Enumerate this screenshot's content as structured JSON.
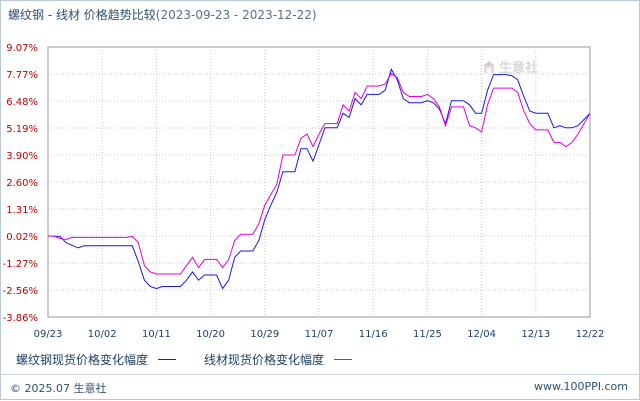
{
  "header": {
    "title": "螺纹钢 - 线材 价格趋势比较",
    "range": "(2023-09-23 - 2023-12-22)"
  },
  "watermark": {
    "text": "生意社"
  },
  "legend": {
    "series1": "螺纹钢现货价格变化幅度",
    "series2": "线材现货价格变化幅度"
  },
  "footer": {
    "copyright": "© 2025.07 生意社",
    "site": "www.100PPI.com"
  },
  "colors": {
    "series1": "#1a1adc",
    "series2": "#e000e0",
    "axis_label": "#c00000",
    "grid": "#c8c8c8"
  },
  "chart_data": {
    "type": "line",
    "ylim": [
      -3.86,
      9.07
    ],
    "ytick_labels": [
      "9.07%",
      "7.77%",
      "6.48%",
      "5.19%",
      "3.90%",
      "2.60%",
      "1.31%",
      "0.02%",
      "-1.27%",
      "-2.56%",
      "-3.86%"
    ],
    "xtick_labels": [
      "09/23",
      "10/02",
      "10/11",
      "10/20",
      "10/29",
      "11/07",
      "11/16",
      "11/25",
      "12/04",
      "12/13",
      "12/22"
    ],
    "x_range_days": [
      0,
      90
    ],
    "series": [
      {
        "name": "螺纹钢现货价格变化幅度",
        "color": "#1a1adc",
        "points": [
          [
            0,
            0.02
          ],
          [
            2,
            0.0
          ],
          [
            3,
            -0.3
          ],
          [
            5,
            -0.55
          ],
          [
            6,
            -0.45
          ],
          [
            13,
            -0.45
          ],
          [
            14,
            -0.45
          ],
          [
            15,
            -1.2
          ],
          [
            16,
            -2.1
          ],
          [
            17,
            -2.4
          ],
          [
            18,
            -2.5
          ],
          [
            19,
            -2.4
          ],
          [
            22,
            -2.4
          ],
          [
            23,
            -2.1
          ],
          [
            24,
            -1.7
          ],
          [
            25,
            -2.1
          ],
          [
            26,
            -1.85
          ],
          [
            27,
            -1.85
          ],
          [
            28,
            -1.85
          ],
          [
            29,
            -2.5
          ],
          [
            30,
            -2.1
          ],
          [
            31,
            -1.0
          ],
          [
            32,
            -0.7
          ],
          [
            34,
            -0.7
          ],
          [
            35,
            -0.2
          ],
          [
            36,
            0.8
          ],
          [
            37,
            1.5
          ],
          [
            38,
            2.1
          ],
          [
            39,
            3.1
          ],
          [
            40,
            3.1
          ],
          [
            41,
            3.1
          ],
          [
            42,
            4.2
          ],
          [
            43,
            4.2
          ],
          [
            44,
            3.6
          ],
          [
            45,
            4.4
          ],
          [
            46,
            5.2
          ],
          [
            47,
            5.2
          ],
          [
            48,
            5.2
          ],
          [
            49,
            5.9
          ],
          [
            50,
            5.7
          ],
          [
            51,
            6.6
          ],
          [
            52,
            6.3
          ],
          [
            53,
            6.8
          ],
          [
            55,
            6.8
          ],
          [
            56,
            7.0
          ],
          [
            57,
            8.0
          ],
          [
            58,
            7.5
          ],
          [
            59,
            6.6
          ],
          [
            60,
            6.4
          ],
          [
            61,
            6.4
          ],
          [
            62,
            6.4
          ],
          [
            63,
            6.5
          ],
          [
            64,
            6.4
          ],
          [
            65,
            6.1
          ],
          [
            66,
            5.4
          ],
          [
            67,
            6.5
          ],
          [
            68,
            6.5
          ],
          [
            69,
            6.5
          ],
          [
            70,
            6.3
          ],
          [
            71,
            5.9
          ],
          [
            72,
            5.9
          ],
          [
            73,
            7.0
          ],
          [
            74,
            7.75
          ],
          [
            76,
            7.75
          ],
          [
            77,
            7.7
          ],
          [
            78,
            7.5
          ],
          [
            79,
            6.7
          ],
          [
            80,
            6.0
          ],
          [
            81,
            5.9
          ],
          [
            82,
            5.9
          ],
          [
            83,
            5.9
          ],
          [
            84,
            5.2
          ],
          [
            85,
            5.3
          ],
          [
            86,
            5.2
          ],
          [
            87,
            5.2
          ],
          [
            88,
            5.3
          ],
          [
            89,
            5.6
          ],
          [
            90,
            5.9
          ]
        ]
      },
      {
        "name": "线材现货价格变化幅度",
        "color": "#e000e0",
        "points": [
          [
            0,
            0.02
          ],
          [
            1,
            0.02
          ],
          [
            2,
            -0.1
          ],
          [
            3,
            -0.15
          ],
          [
            4,
            -0.05
          ],
          [
            13,
            -0.05
          ],
          [
            14,
            0.0
          ],
          [
            15,
            -0.3
          ],
          [
            16,
            -1.4
          ],
          [
            17,
            -1.7
          ],
          [
            18,
            -1.8
          ],
          [
            19,
            -1.8
          ],
          [
            22,
            -1.8
          ],
          [
            23,
            -1.4
          ],
          [
            24,
            -1.0
          ],
          [
            25,
            -1.5
          ],
          [
            26,
            -1.1
          ],
          [
            27,
            -1.1
          ],
          [
            28,
            -1.1
          ],
          [
            29,
            -1.5
          ],
          [
            30,
            -1.1
          ],
          [
            31,
            -0.2
          ],
          [
            32,
            0.1
          ],
          [
            34,
            0.1
          ],
          [
            35,
            0.6
          ],
          [
            36,
            1.5
          ],
          [
            37,
            2.0
          ],
          [
            38,
            2.5
          ],
          [
            39,
            3.9
          ],
          [
            40,
            3.9
          ],
          [
            41,
            3.9
          ],
          [
            42,
            4.7
          ],
          [
            43,
            4.9
          ],
          [
            44,
            4.3
          ],
          [
            45,
            4.9
          ],
          [
            46,
            5.4
          ],
          [
            47,
            5.4
          ],
          [
            48,
            5.4
          ],
          [
            49,
            6.3
          ],
          [
            50,
            6.0
          ],
          [
            51,
            6.9
          ],
          [
            52,
            6.6
          ],
          [
            53,
            7.2
          ],
          [
            55,
            7.2
          ],
          [
            56,
            7.3
          ],
          [
            57,
            7.8
          ],
          [
            58,
            7.6
          ],
          [
            59,
            6.9
          ],
          [
            60,
            6.7
          ],
          [
            61,
            6.7
          ],
          [
            62,
            6.7
          ],
          [
            63,
            6.8
          ],
          [
            64,
            6.6
          ],
          [
            65,
            6.2
          ],
          [
            66,
            5.3
          ],
          [
            67,
            6.2
          ],
          [
            68,
            6.2
          ],
          [
            69,
            6.2
          ],
          [
            70,
            5.3
          ],
          [
            71,
            5.2
          ],
          [
            72,
            5.0
          ],
          [
            73,
            6.3
          ],
          [
            74,
            7.1
          ],
          [
            76,
            7.1
          ],
          [
            77,
            7.1
          ],
          [
            78,
            6.9
          ],
          [
            79,
            6.0
          ],
          [
            80,
            5.4
          ],
          [
            81,
            5.1
          ],
          [
            82,
            5.1
          ],
          [
            83,
            5.1
          ],
          [
            84,
            4.5
          ],
          [
            85,
            4.5
          ],
          [
            86,
            4.3
          ],
          [
            87,
            4.5
          ],
          [
            88,
            4.9
          ],
          [
            89,
            5.4
          ],
          [
            90,
            5.9
          ]
        ]
      }
    ]
  }
}
